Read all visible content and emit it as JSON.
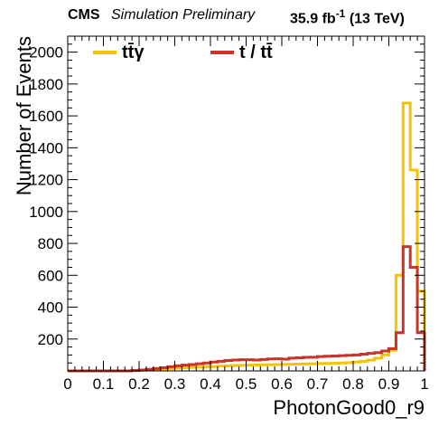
{
  "header": {
    "experiment": "CMS",
    "status": "Simulation Preliminary",
    "lumi_value": "35.9 fb",
    "lumi_exp": "-1",
    "energy": "(13 TeV)"
  },
  "chart_data": {
    "type": "line",
    "title": "",
    "xlabel": "PhotonGood0_r9",
    "ylabel": "Number of Events",
    "xlim": [
      0,
      1
    ],
    "ylim": [
      0,
      2100
    ],
    "xticks": [
      0,
      0.1,
      0.2,
      0.3,
      0.4,
      0.5,
      0.6,
      0.7,
      0.8,
      0.9,
      1
    ],
    "xtick_labels": [
      "0",
      "0.1",
      "0.2",
      "0.3",
      "0.4",
      "0.5",
      "0.6",
      "0.7",
      "0.8",
      "0.9",
      "1"
    ],
    "yticks": [
      200,
      400,
      600,
      800,
      1000,
      1200,
      1400,
      1600,
      1800,
      2000
    ],
    "ytick_labels": [
      "200",
      "400",
      "600",
      "800",
      "1000",
      "1200",
      "1400",
      "1600",
      "1800",
      "2000"
    ],
    "legend_position": "top",
    "bin_edges": [
      0,
      0.02,
      0.04,
      0.06,
      0.08,
      0.1,
      0.12,
      0.14,
      0.16,
      0.18,
      0.2,
      0.22,
      0.24,
      0.26,
      0.28,
      0.3,
      0.32,
      0.34,
      0.36,
      0.38,
      0.4,
      0.42,
      0.44,
      0.46,
      0.48,
      0.5,
      0.52,
      0.54,
      0.56,
      0.58,
      0.6,
      0.62,
      0.64,
      0.66,
      0.68,
      0.7,
      0.72,
      0.74,
      0.76,
      0.78,
      0.8,
      0.82,
      0.84,
      0.86,
      0.88,
      0.9,
      0.92,
      0.94,
      0.96,
      0.98,
      1.0
    ],
    "series": [
      {
        "name": "tt̄γ",
        "color": "#f5c400",
        "values": [
          0,
          0,
          0,
          0,
          0,
          0,
          0,
          0,
          0,
          2,
          4,
          6,
          9,
          12,
          15,
          18,
          20,
          22,
          24,
          26,
          28,
          30,
          32,
          34,
          35,
          36,
          37,
          38,
          39,
          40,
          41,
          42,
          43,
          44,
          45,
          46,
          47,
          48,
          50,
          52,
          55,
          60,
          68,
          80,
          100,
          130,
          600,
          1680,
          1260,
          500
        ]
      },
      {
        "name": "t / tt̄",
        "color": "#c8342a",
        "values": [
          0,
          0,
          0,
          0,
          0,
          0,
          0,
          0,
          0,
          3,
          6,
          10,
          15,
          20,
          26,
          32,
          36,
          40,
          45,
          50,
          55,
          60,
          65,
          68,
          70,
          70,
          68,
          72,
          75,
          76,
          74,
          80,
          82,
          85,
          86,
          90,
          92,
          94,
          96,
          98,
          100,
          105,
          110,
          115,
          125,
          140,
          240,
          780,
          650,
          240
        ]
      }
    ]
  }
}
